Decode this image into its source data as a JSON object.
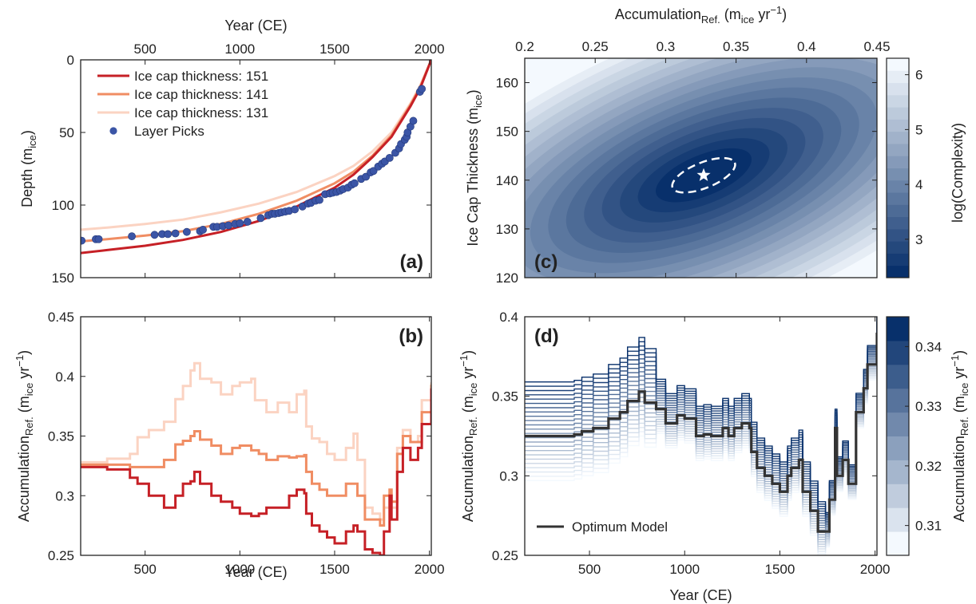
{
  "chart_data": [
    {
      "panel_label": "(a)",
      "type": "line",
      "xlabel": "Year (CE)",
      "ylabel": "Depth (m",
      "ylabel_sub": "ice",
      "ylabel_end": ")",
      "xlim": [
        160,
        2010
      ],
      "ylim": [
        150,
        0
      ],
      "xticks": [
        500,
        1000,
        1500,
        2000
      ],
      "yticks": [
        0,
        50,
        100,
        150
      ],
      "xaxis_position": "top",
      "legend_position": "top-left",
      "series": [
        {
          "name": "Ice cap thickness: 151",
          "color": "#c62026",
          "x": [
            160,
            300,
            500,
            700,
            900,
            1100,
            1300,
            1500,
            1600,
            1700,
            1800,
            1900,
            1950,
            2010
          ],
          "y": [
            133,
            131,
            128,
            124,
            118.5,
            111,
            101,
            88,
            79,
            67,
            53,
            32,
            20,
            0
          ]
        },
        {
          "name": "Ice cap thickness: 141",
          "color": "#f08d63",
          "x": [
            160,
            300,
            500,
            700,
            900,
            1100,
            1300,
            1500,
            1600,
            1700,
            1800,
            1900,
            1950,
            2010
          ],
          "y": [
            125,
            123.5,
            121,
            118,
            113,
            106,
            97,
            85,
            77,
            66,
            52,
            31,
            19,
            0
          ]
        },
        {
          "name": "Ice cap thickness: 131",
          "color": "#fbd3c2",
          "x": [
            160,
            300,
            500,
            700,
            900,
            1100,
            1300,
            1500,
            1600,
            1700,
            1800,
            1900,
            1950,
            2010
          ],
          "y": [
            117,
            115.5,
            113,
            110,
            105,
            99,
            91,
            80,
            73,
            63,
            50,
            30,
            18,
            0
          ]
        }
      ],
      "points": {
        "name": "Layer Picks",
        "color": "#3b55a6",
        "x": [
          165,
          240,
          255,
          430,
          550,
          590,
          620,
          660,
          720,
          790,
          805,
          860,
          880,
          910,
          940,
          975,
          1000,
          1040,
          1110,
          1150,
          1170,
          1185,
          1205,
          1220,
          1240,
          1260,
          1290,
          1330,
          1360,
          1375,
          1400,
          1420,
          1450,
          1475,
          1490,
          1510,
          1530,
          1545,
          1570,
          1590,
          1605,
          1640,
          1665,
          1690,
          1705,
          1730,
          1750,
          1765,
          1790,
          1820,
          1840,
          1850,
          1870,
          1880,
          1885,
          1900,
          1915,
          1950,
          1960
        ],
        "y": [
          124.5,
          123.5,
          123.5,
          121.5,
          120.5,
          120,
          120,
          119.5,
          118.5,
          118,
          117,
          115,
          115,
          114.5,
          114,
          113,
          112.5,
          111.5,
          109,
          107,
          106,
          106,
          105.5,
          105,
          104.5,
          104,
          103,
          101,
          99,
          98.5,
          97,
          96.5,
          92.5,
          92,
          91.5,
          91,
          90,
          89,
          88,
          86,
          85,
          82,
          80.5,
          77.5,
          76.5,
          73.5,
          71.5,
          70,
          67.5,
          64,
          61,
          58,
          55,
          53,
          50,
          46,
          42,
          22,
          20
        ]
      }
    },
    {
      "panel_label": "(b)",
      "type": "line",
      "xlabel": "Year (CE)",
      "ylabel": "Accumulation",
      "ylabel_sub": "Ref.",
      "ylabel_mid": " (m",
      "ylabel_sub2": "ice",
      "ylabel_mid2": " yr",
      "ylabel_sup": "−1",
      "ylabel_end": ")",
      "xlim": [
        160,
        2010
      ],
      "ylim": [
        0.25,
        0.45
      ],
      "xticks": [
        500,
        1000,
        1500,
        2000
      ],
      "yticks": [
        0.25,
        0.3,
        0.35,
        0.4,
        0.45
      ],
      "ytick_labels": [
        "0.25",
        "0.3",
        "0.35",
        "0.4",
        "0.45"
      ],
      "series": [
        {
          "name": "Ice cap thickness: 131",
          "color": "#fbd3c2",
          "x": [
            160,
            300,
            420,
            460,
            520,
            600,
            660,
            700,
            740,
            760,
            790,
            850,
            900,
            960,
            1000,
            1060,
            1080,
            1140,
            1200,
            1260,
            1300,
            1340,
            1350,
            1380,
            1420,
            1460,
            1500,
            1560,
            1600,
            1620,
            1660,
            1700,
            1740,
            1760,
            1790,
            1800,
            1830,
            1860,
            1900,
            1940,
            1960,
            2010
          ],
          "y": [
            0.328,
            0.331,
            0.335,
            0.349,
            0.355,
            0.362,
            0.381,
            0.392,
            0.405,
            0.411,
            0.398,
            0.395,
            0.385,
            0.392,
            0.395,
            0.398,
            0.38,
            0.37,
            0.378,
            0.37,
            0.385,
            0.388,
            0.358,
            0.348,
            0.345,
            0.335,
            0.33,
            0.34,
            0.352,
            0.33,
            0.29,
            0.285,
            0.28,
            0.29,
            0.305,
            0.29,
            0.34,
            0.355,
            0.345,
            0.35,
            0.38,
            0.395
          ]
        },
        {
          "name": "Ice cap thickness: 141",
          "color": "#f08d63",
          "x": [
            160,
            300,
            420,
            460,
            520,
            600,
            660,
            700,
            740,
            760,
            790,
            850,
            900,
            960,
            1000,
            1060,
            1100,
            1140,
            1200,
            1260,
            1300,
            1340,
            1350,
            1380,
            1420,
            1460,
            1500,
            1560,
            1600,
            1620,
            1660,
            1700,
            1740,
            1760,
            1790,
            1800,
            1830,
            1860,
            1900,
            1940,
            1960,
            2010
          ],
          "y": [
            0.326,
            0.326,
            0.324,
            0.324,
            0.324,
            0.33,
            0.343,
            0.346,
            0.35,
            0.354,
            0.347,
            0.342,
            0.335,
            0.34,
            0.342,
            0.338,
            0.335,
            0.33,
            0.333,
            0.332,
            0.333,
            0.334,
            0.32,
            0.31,
            0.305,
            0.3,
            0.3,
            0.31,
            0.31,
            0.3,
            0.28,
            0.28,
            0.275,
            0.3,
            0.305,
            0.295,
            0.335,
            0.35,
            0.345,
            0.345,
            0.37,
            0.393
          ]
        },
        {
          "name": "Ice cap thickness: 151",
          "color": "#c62026",
          "x": [
            160,
            300,
            420,
            460,
            520,
            600,
            660,
            700,
            740,
            760,
            790,
            850,
            900,
            960,
            1000,
            1060,
            1100,
            1140,
            1200,
            1260,
            1300,
            1340,
            1350,
            1380,
            1420,
            1460,
            1500,
            1560,
            1600,
            1620,
            1660,
            1700,
            1740,
            1760,
            1790,
            1800,
            1830,
            1860,
            1900,
            1940,
            1960,
            2010
          ],
          "y": [
            0.324,
            0.322,
            0.315,
            0.31,
            0.3,
            0.29,
            0.3,
            0.31,
            0.312,
            0.32,
            0.31,
            0.3,
            0.295,
            0.29,
            0.285,
            0.283,
            0.285,
            0.29,
            0.29,
            0.3,
            0.305,
            0.302,
            0.285,
            0.275,
            0.27,
            0.265,
            0.26,
            0.27,
            0.275,
            0.27,
            0.255,
            0.252,
            0.25,
            0.27,
            0.3,
            0.28,
            0.32,
            0.34,
            0.33,
            0.34,
            0.36,
            0.39
          ]
        }
      ]
    },
    {
      "panel_label": "(c)",
      "type": "heatmap",
      "xlabel": "Accumulation",
      "xlabel_sub": "Ref.",
      "xlabel_mid": " (m",
      "xlabel_sub2": "ice",
      "xlabel_mid2": " yr",
      "xlabel_sup": "−1",
      "xlabel_end": ")",
      "ylabel": "Ice Cap Thickness (m",
      "ylabel_sub": "ice",
      "ylabel_end": ")",
      "xlim": [
        0.2,
        0.45
      ],
      "ylim": [
        120,
        165
      ],
      "xticks": [
        0.2,
        0.25,
        0.3,
        0.35,
        0.4,
        0.45
      ],
      "xtick_labels": [
        "0.2",
        "0.25",
        "0.3",
        "0.35",
        "0.4",
        "0.45"
      ],
      "yticks": [
        120,
        130,
        140,
        150,
        160
      ],
      "xaxis_position": "top",
      "optimum": {
        "x": 0.327,
        "y": 141
      },
      "colorbar": {
        "label": "log(Complexity)",
        "range": [
          2.3,
          6.3
        ],
        "ticks": [
          3,
          4,
          5,
          6
        ],
        "levels": 18
      },
      "colors": {
        "dark": "#08306b",
        "light": "#f4f9fe"
      }
    },
    {
      "panel_label": "(d)",
      "type": "line",
      "xlabel": "Year (CE)",
      "ylabel": "Accumulation",
      "ylabel_sub": "Ref.",
      "ylabel_mid": " (m",
      "ylabel_sub2": "ice",
      "ylabel_mid2": " yr",
      "ylabel_sup": "−1",
      "ylabel_end": ")",
      "xlim": [
        160,
        2010
      ],
      "ylim": [
        0.25,
        0.4
      ],
      "xticks": [
        500,
        1000,
        1500,
        2000
      ],
      "yticks": [
        0.25,
        0.3,
        0.35,
        0.4
      ],
      "ytick_labels": [
        "0.25",
        "0.3",
        "0.35",
        "0.4"
      ],
      "legend_position": "bottom-left",
      "optimum": {
        "name": "Optimum Model",
        "color": "#333333",
        "x": [
          160,
          420,
          460,
          520,
          600,
          660,
          700,
          740,
          760,
          790,
          850,
          900,
          960,
          1000,
          1060,
          1100,
          1140,
          1200,
          1230,
          1260,
          1300,
          1340,
          1350,
          1380,
          1420,
          1460,
          1500,
          1540,
          1560,
          1600,
          1620,
          1660,
          1700,
          1740,
          1760,
          1790,
          1800,
          1830,
          1860,
          1900,
          1940,
          1960,
          2010
        ],
        "y": [
          0.325,
          0.326,
          0.328,
          0.33,
          0.336,
          0.34,
          0.347,
          0.347,
          0.353,
          0.346,
          0.342,
          0.333,
          0.338,
          0.336,
          0.325,
          0.326,
          0.325,
          0.33,
          0.325,
          0.33,
          0.333,
          0.33,
          0.315,
          0.305,
          0.3,
          0.295,
          0.29,
          0.3,
          0.305,
          0.31,
          0.29,
          0.278,
          0.265,
          0.265,
          0.285,
          0.33,
          0.3,
          0.31,
          0.295,
          0.34,
          0.355,
          0.37,
          0.39
        ]
      },
      "spread": {
        "up": 0.034,
        "down": 0.028
      },
      "colorbar": {
        "range": [
          0.305,
          0.345
        ],
        "ticks": [
          0.31,
          0.32,
          0.33,
          0.34
        ],
        "tick_labels": [
          "0.31",
          "0.32",
          "0.33",
          "0.34"
        ],
        "levels": 10
      },
      "colors": {
        "dark": "#08306b",
        "light": "#f4f9fe"
      }
    }
  ]
}
